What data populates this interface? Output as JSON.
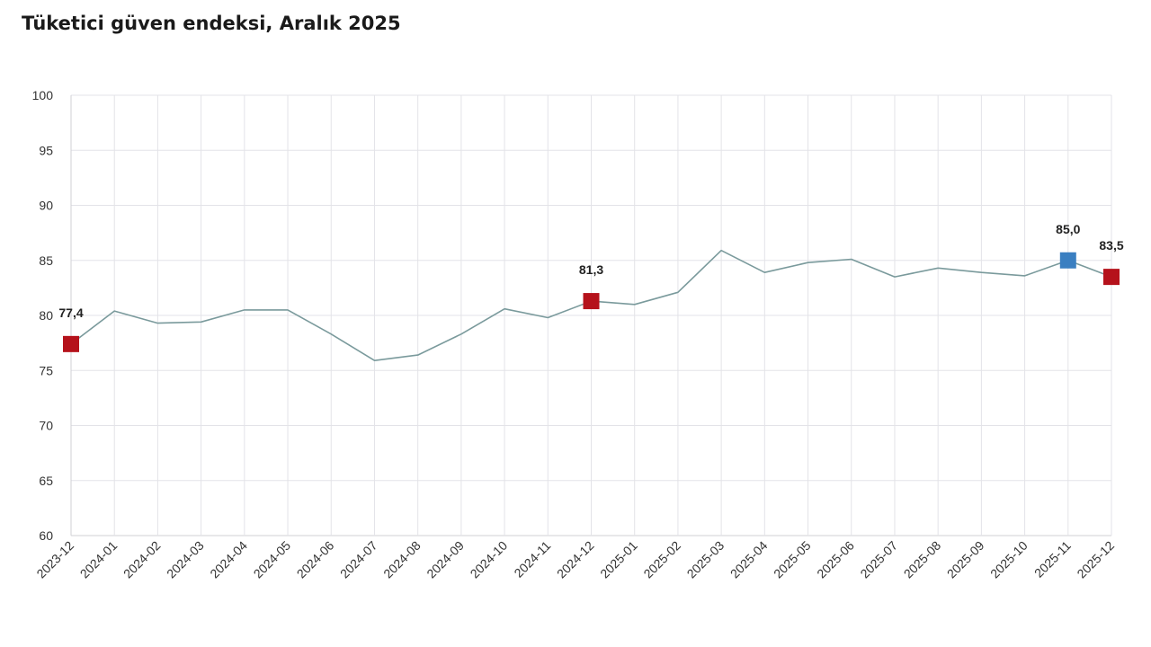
{
  "title": "Tüketici güven endeksi, Aralık 2025",
  "chart_data": {
    "type": "line",
    "title": "Tüketici güven endeksi, Aralık 2025",
    "xlabel": "",
    "ylabel": "",
    "ylim": [
      60,
      100
    ],
    "yticks": [
      "60",
      "65",
      "70",
      "75",
      "80",
      "85",
      "90",
      "95",
      "100"
    ],
    "grid": true,
    "categories": [
      "2023-12",
      "2024-01",
      "2024-02",
      "2024-03",
      "2024-04",
      "2024-05",
      "2024-06",
      "2024-07",
      "2024-08",
      "2024-09",
      "2024-10",
      "2024-11",
      "2024-12",
      "2025-01",
      "2025-02",
      "2025-03",
      "2025-04",
      "2025-05",
      "2025-06",
      "2025-07",
      "2025-08",
      "2025-09",
      "2025-10",
      "2025-11",
      "2025-12"
    ],
    "values": [
      77.4,
      80.4,
      79.3,
      79.4,
      80.5,
      80.5,
      78.3,
      75.9,
      76.4,
      78.3,
      80.6,
      79.8,
      81.3,
      81.0,
      82.1,
      85.9,
      83.9,
      84.8,
      85.1,
      83.5,
      84.3,
      83.9,
      83.6,
      85.0,
      83.5
    ],
    "line_color": "#7a9a9c",
    "highlights": [
      {
        "category": "2023-12",
        "label": "77,4",
        "color": "#b5121b"
      },
      {
        "category": "2024-12",
        "label": "81,3",
        "color": "#b5121b"
      },
      {
        "category": "2025-11",
        "label": "85,0",
        "color": "#3a7fc1"
      },
      {
        "category": "2025-12",
        "label": "83,5",
        "color": "#b5121b"
      }
    ]
  }
}
